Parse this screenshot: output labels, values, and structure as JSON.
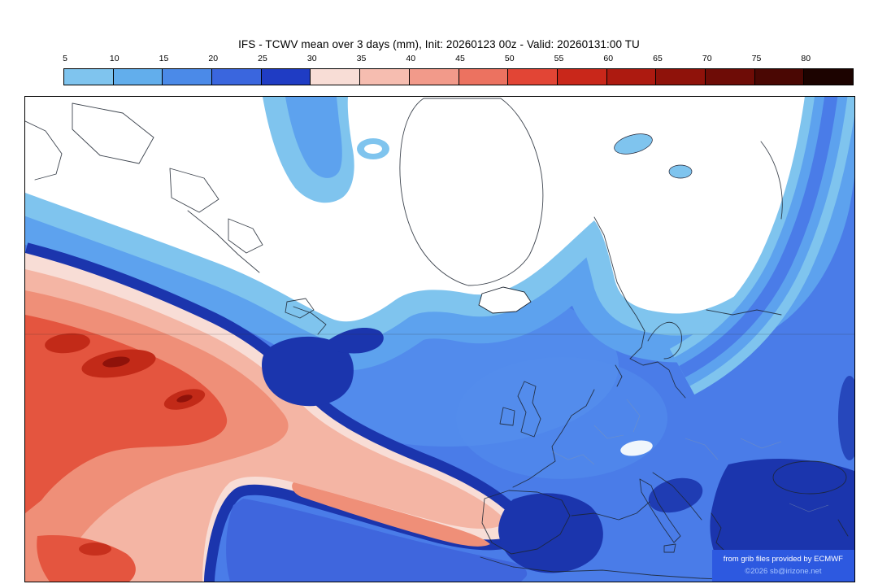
{
  "title": "IFS - TCWV mean over 3 days (mm), Init: 20260123 00z - Valid: 20260131:00 TU",
  "colorbar": {
    "unit": "mm",
    "ticks": [
      "5",
      "10",
      "15",
      "20",
      "25",
      "30",
      "35",
      "40",
      "45",
      "50",
      "55",
      "60",
      "65",
      "70",
      "75",
      "80"
    ],
    "colors": [
      "#7fc4ee",
      "#62aeec",
      "#4b8ae8",
      "#3a66de",
      "#1f3cc4",
      "#f8ddd6",
      "#f6bdb0",
      "#f29a8a",
      "#ec7260",
      "#e24535",
      "#c9271a",
      "#ad1a10",
      "#8f120a",
      "#6e0c06",
      "#4a0703",
      "#1c0300"
    ]
  },
  "map": {
    "fill_bands": {
      "below_scale": "#ffffff",
      "band_5_10": "#7fc4ee",
      "band_10_15": "#5da2ee",
      "band_15_20": "#548eec",
      "band_20_25": "#4a7ce8",
      "band_25_30": "#1b35ad",
      "band_30_35": "#f8ddd6",
      "band_35_40": "#f4b5a4",
      "band_40_45": "#ef8f78",
      "band_45_50": "#e4553f",
      "band_50_55": "#c22a18",
      "band_55_60": "#8f120a"
    }
  },
  "credits": {
    "source_line": "from grib files provided by ECMWF",
    "copyright_line": "©2026 sb@irizone.net"
  }
}
